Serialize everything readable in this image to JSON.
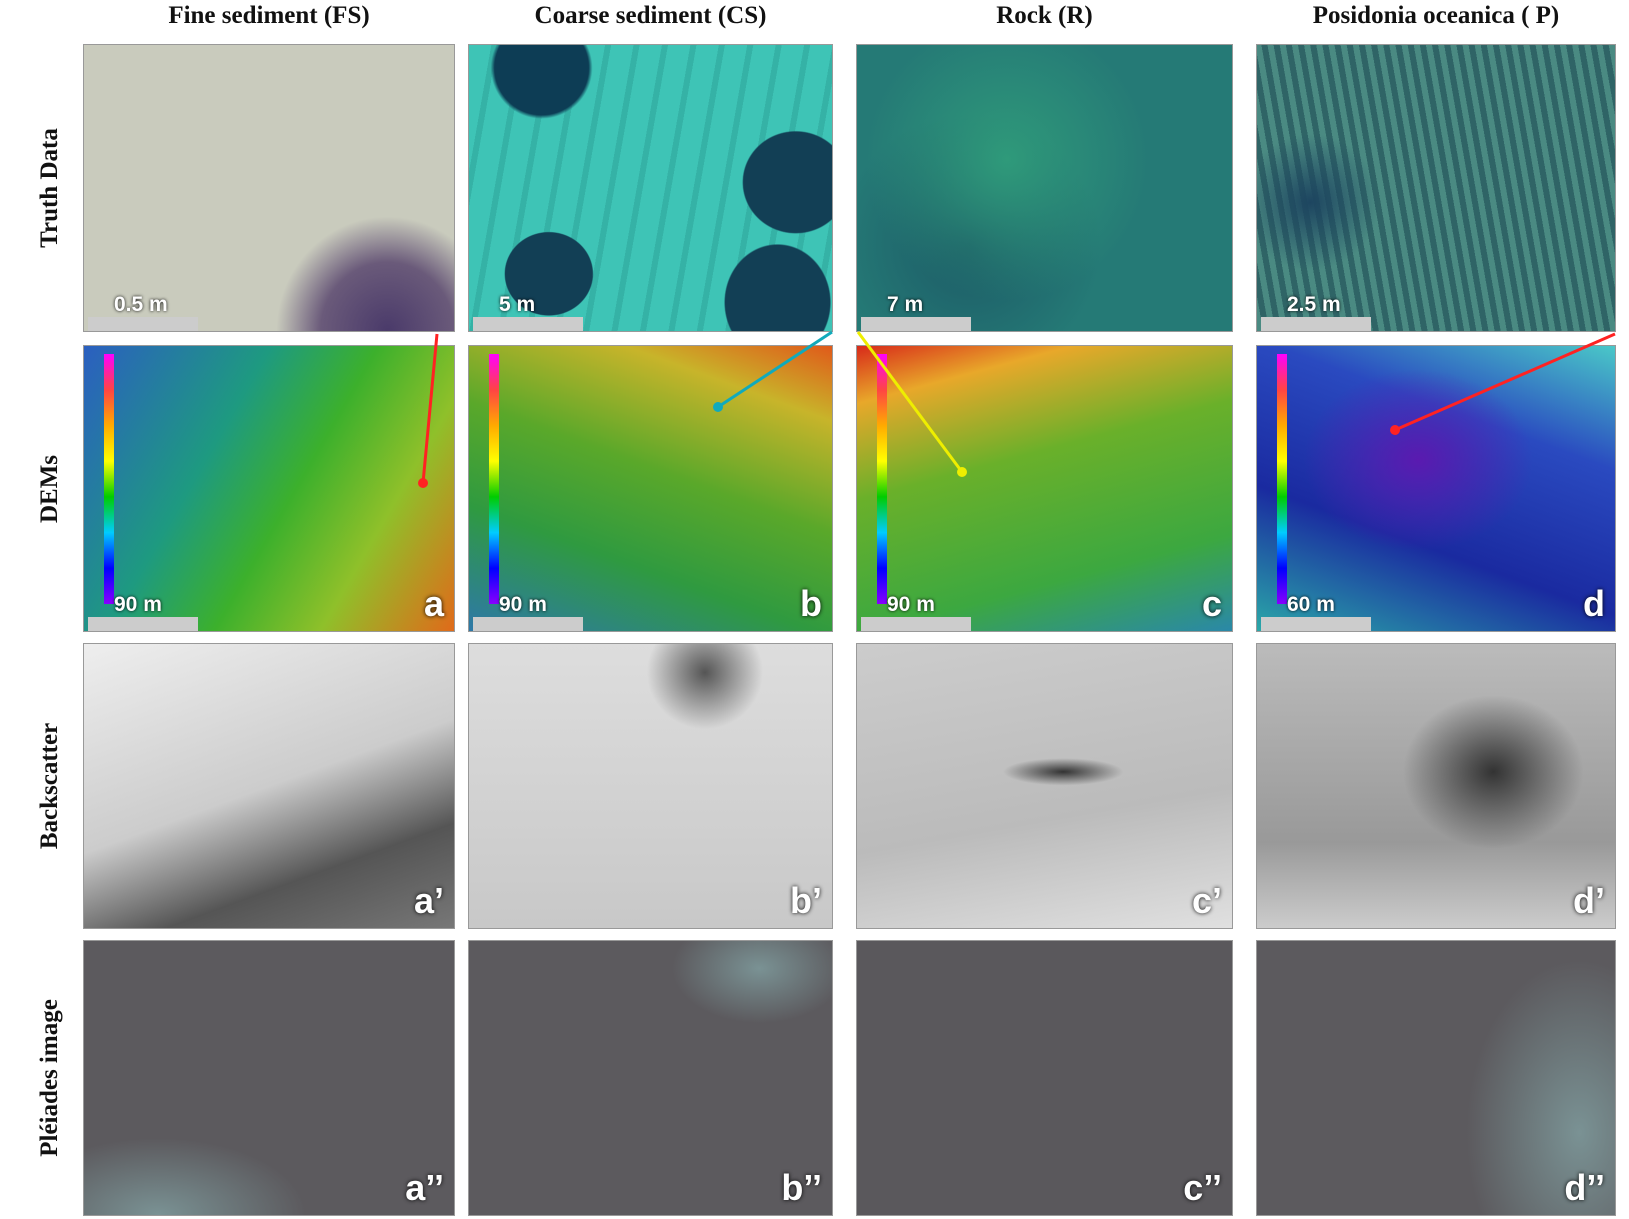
{
  "columns": [
    "Fine sediment (FS)",
    "Coarse sediment (CS)",
    "Rock (R)",
    "Posidonia oceanica ( P)"
  ],
  "rows": [
    "Truth Data",
    "DEMs",
    "Backscatter",
    "Pléiades image"
  ],
  "truth_data": {
    "scale_bars": [
      "0.5 m",
      "5 m",
      "7 m",
      "2.5 m"
    ]
  },
  "dems": {
    "scale_bars": [
      "90 m",
      "90 m",
      "90 m",
      "60 m"
    ],
    "letters": [
      "a",
      "b",
      "c",
      "d"
    ]
  },
  "backscatter": {
    "letters": [
      "a’",
      "b’",
      "c’",
      "d’"
    ]
  },
  "pleiades": {
    "letters": [
      "a’’",
      "b’’",
      "c’’",
      "d’’"
    ]
  }
}
